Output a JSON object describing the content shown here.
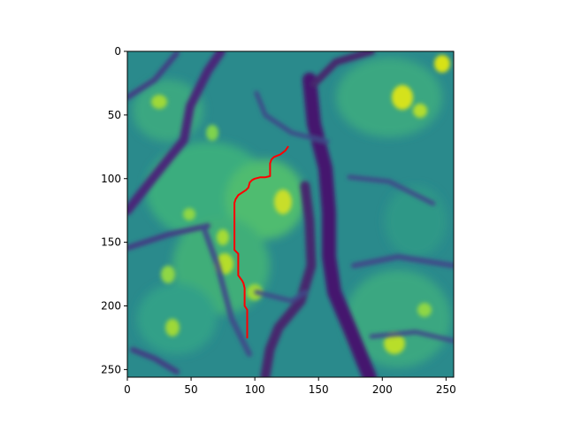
{
  "chart_data": {
    "type": "heatmap",
    "title": "",
    "xlabel": "",
    "ylabel": "",
    "grid": false,
    "colormap": "viridis",
    "image_shape": [
      256,
      256
    ],
    "xlim": [
      0,
      256
    ],
    "ylim": [
      256,
      0
    ],
    "x_ticks": [
      0,
      50,
      100,
      150,
      200,
      250
    ],
    "y_ticks": [
      0,
      50,
      100,
      150,
      200,
      250
    ],
    "x_tick_labels": [
      "0",
      "50",
      "100",
      "150",
      "200",
      "250"
    ],
    "y_tick_labels": [
      "0",
      "50",
      "100",
      "150",
      "200",
      "250"
    ],
    "path": {
      "color": "#ff0000",
      "points": [
        [
          126,
          75
        ],
        [
          124,
          78
        ],
        [
          120,
          81
        ],
        [
          115,
          83
        ],
        [
          113,
          85
        ],
        [
          112,
          88
        ],
        [
          112,
          98
        ],
        [
          108,
          99
        ],
        [
          104,
          99
        ],
        [
          100,
          100
        ],
        [
          98,
          101
        ],
        [
          96,
          103
        ],
        [
          95,
          107
        ],
        [
          93,
          109
        ],
        [
          90,
          111
        ],
        [
          87,
          113
        ],
        [
          85,
          116
        ],
        [
          84,
          119
        ],
        [
          84,
          156
        ],
        [
          87,
          159
        ],
        [
          87,
          176
        ],
        [
          90,
          180
        ],
        [
          91,
          182
        ],
        [
          92,
          186
        ],
        [
          92,
          200
        ],
        [
          94,
          203
        ],
        [
          94,
          225
        ]
      ]
    }
  }
}
